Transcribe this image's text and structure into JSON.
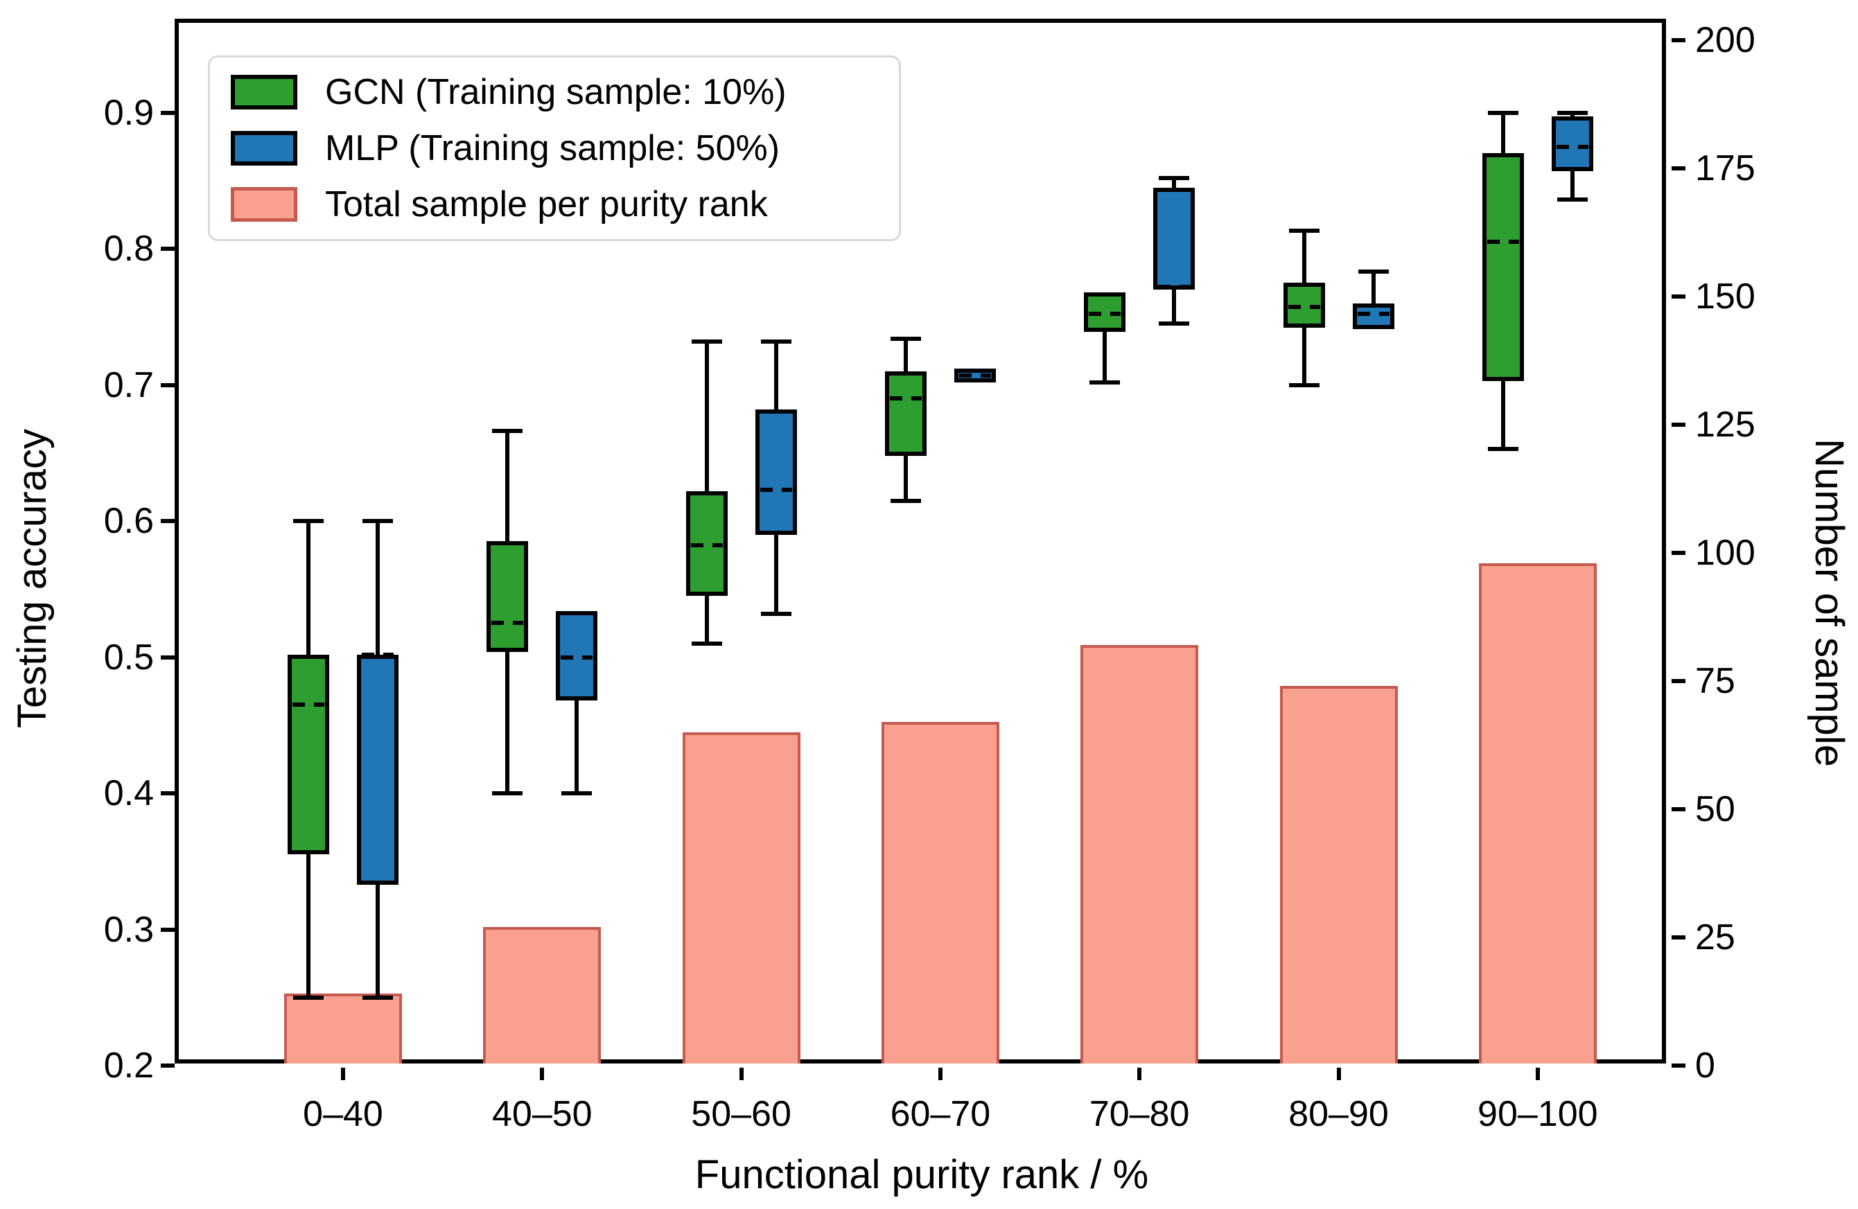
{
  "chart_data": {
    "type": "box+bar",
    "x_label": "Functional purity rank / %",
    "categories": [
      "0–40",
      "40–50",
      "50–60",
      "60–70",
      "70–80",
      "80–90",
      "90–100"
    ],
    "y_left": {
      "label": "Testing accuracy",
      "min": 0.2,
      "max": 0.95,
      "ticks": [
        0.2,
        0.3,
        0.4,
        0.5,
        0.6,
        0.7,
        0.8,
        0.9
      ]
    },
    "y_right": {
      "label": "Number of sample",
      "min": 0,
      "max": 200,
      "ticks": [
        0,
        25,
        50,
        75,
        100,
        125,
        150,
        175,
        200
      ]
    },
    "legend": [
      {
        "label": "GCN (Training sample: 10%)",
        "fill": "#2E9E30",
        "edge": "#000000"
      },
      {
        "label": "MLP (Training sample: 50%)",
        "fill": "#2176B5",
        "edge": "#000000"
      },
      {
        "label": "Total sample per purity rank",
        "fill": "#F9A08F",
        "edge": "#C45A50"
      }
    ],
    "series": [
      {
        "name": "GCN (Training sample: 10%)",
        "color": "#2E9E30",
        "boxes": [
          {
            "whislo": 0.25,
            "q1": 0.355,
            "med": 0.465,
            "q3": 0.502,
            "whishi": 0.6
          },
          {
            "whislo": 0.4,
            "q1": 0.504,
            "med": 0.525,
            "q3": 0.585,
            "whishi": 0.666
          },
          {
            "whislo": 0.51,
            "q1": 0.545,
            "med": 0.582,
            "q3": 0.622,
            "whishi": 0.732
          },
          {
            "whislo": 0.615,
            "q1": 0.648,
            "med": 0.69,
            "q3": 0.71,
            "whishi": 0.734
          },
          {
            "whislo": 0.702,
            "q1": 0.739,
            "med": 0.752,
            "q3": 0.768,
            "whishi": 0.768
          },
          {
            "whislo": 0.7,
            "q1": 0.742,
            "med": 0.757,
            "q3": 0.775,
            "whishi": 0.813
          },
          {
            "whislo": 0.653,
            "q1": 0.703,
            "med": 0.805,
            "q3": 0.87,
            "whishi": 0.9
          }
        ]
      },
      {
        "name": "MLP (Training sample: 50%)",
        "color": "#2176B5",
        "boxes": [
          {
            "whislo": 0.25,
            "q1": 0.333,
            "med": 0.502,
            "q3": 0.502,
            "whishi": 0.6
          },
          {
            "whislo": 0.4,
            "q1": 0.468,
            "med": 0.5,
            "q3": 0.534,
            "whishi": 0.534
          },
          {
            "whislo": 0.532,
            "q1": 0.59,
            "med": 0.623,
            "q3": 0.682,
            "whishi": 0.732
          },
          {
            "whislo": 0.7,
            "q1": 0.702,
            "med": 0.707,
            "q3": 0.712,
            "whishi": 0.713
          },
          {
            "whislo": 0.745,
            "q1": 0.77,
            "med": 0.772,
            "q3": 0.845,
            "whishi": 0.852
          },
          {
            "whislo": 0.74,
            "q1": 0.741,
            "med": 0.752,
            "q3": 0.76,
            "whishi": 0.783
          },
          {
            "whislo": 0.836,
            "q1": 0.857,
            "med": 0.875,
            "q3": 0.897,
            "whishi": 0.9
          }
        ]
      }
    ],
    "bars": {
      "name": "Total sample per purity rank",
      "fill": "#F9A08F",
      "edge": "#C45A50",
      "values": [
        14,
        27,
        65,
        67,
        82,
        74,
        98
      ]
    }
  }
}
